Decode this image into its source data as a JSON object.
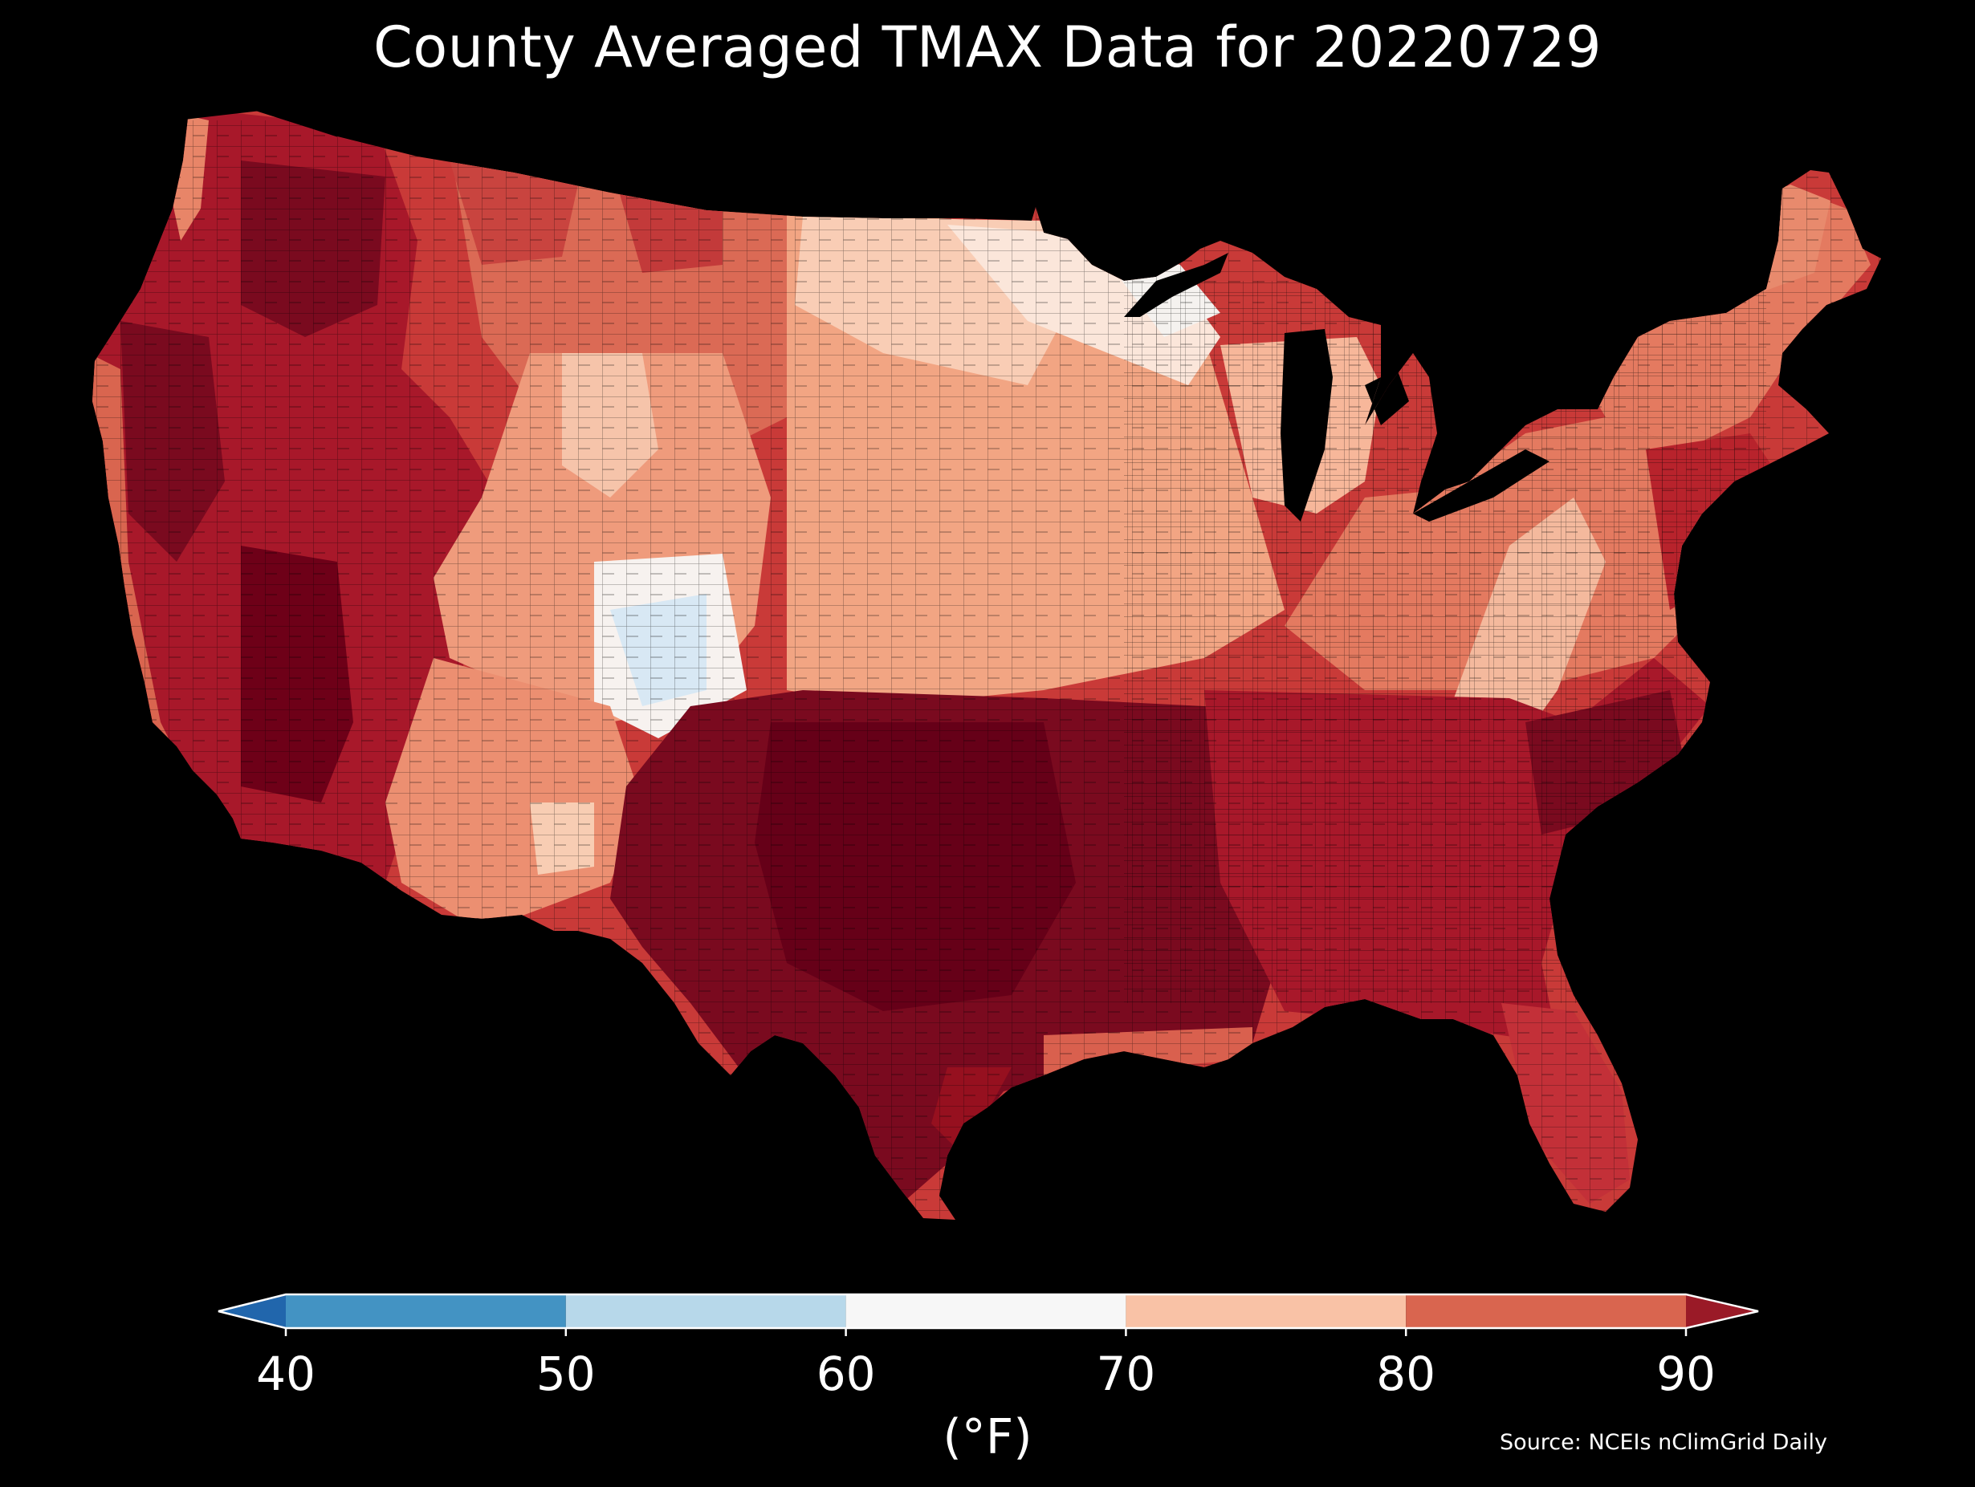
{
  "title": "County Averaged TMAX Data for 20220729",
  "colorbar": {
    "unit": "(°F)",
    "ticks": [
      "40",
      "50",
      "60",
      "70",
      "80",
      "90"
    ],
    "bins": [
      {
        "from": null,
        "to": 40,
        "color": "#2166ac"
      },
      {
        "from": 40,
        "to": 50,
        "color": "#4393c3"
      },
      {
        "from": 50,
        "to": 60,
        "color": "#b7d8ea"
      },
      {
        "from": 60,
        "to": 70,
        "color": "#f7f7f7"
      },
      {
        "from": 70,
        "to": 80,
        "color": "#f9c2a6"
      },
      {
        "from": 80,
        "to": 90,
        "color": "#d9654f"
      },
      {
        "from": 90,
        "to": null,
        "color": "#9a1a27"
      }
    ]
  },
  "source": "Source: NCEIs nClimGrid Daily",
  "map_colors": {
    "darkest": "#6e0018",
    "dark": "#96101f",
    "hot": "#b8232c",
    "warm": "#dd6f57",
    "mild": "#f2a583",
    "cool": "#fbdcc9",
    "neutral": "#f5f2ef",
    "cold": "#d8e8f4",
    "background": "#000000"
  }
}
